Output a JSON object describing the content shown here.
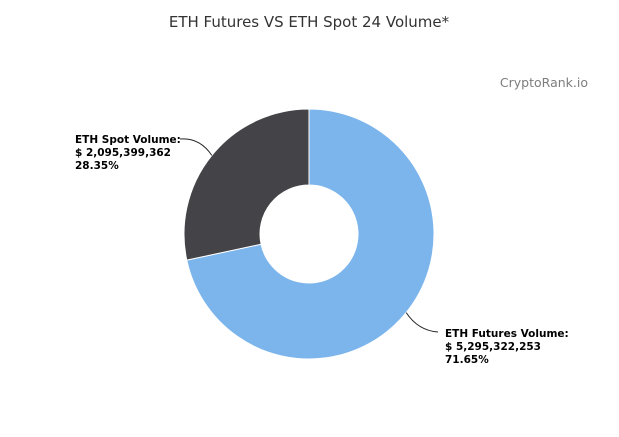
{
  "chart_data": {
    "type": "pie",
    "title": "ETH Futures VS ETH Spot 24 Volume*",
    "watermark": "CryptoRank.io",
    "donut": true,
    "slices": [
      {
        "name": "ETH Futures Volume:",
        "value_label": "$ 5,295,322,253",
        "value": 5295322253,
        "percent_label": "71.65%",
        "percent": 71.65,
        "color": "#7cb5ec"
      },
      {
        "name": "ETH Spot Volume:",
        "value_label": "$ 2,095,399,362",
        "value": 2095399362,
        "percent_label": "28.35%",
        "percent": 28.35,
        "color": "#434348"
      }
    ]
  }
}
